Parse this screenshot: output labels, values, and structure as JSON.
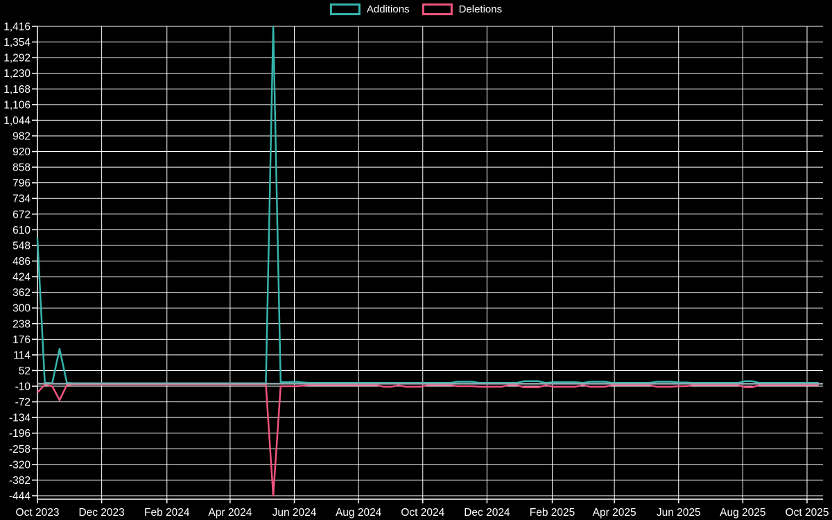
{
  "chart_data": {
    "type": "line",
    "title": "",
    "legend": [
      {
        "label": "Additions",
        "color": "#36b5ad"
      },
      {
        "label": "Deletions",
        "color": "#f0557e"
      }
    ],
    "background": "#000000",
    "grid": true,
    "grid_color": "#ffffff",
    "text_color": "#ffffff",
    "baseline_color": "#95a5ae",
    "x_axis": {
      "tick_labels": [
        "Oct 2023",
        "Dec 2023",
        "Feb 2024",
        "Apr 2024",
        "Jun 2024",
        "Aug 2024",
        "Oct 2024",
        "Dec 2024",
        "Feb 2025",
        "Apr 2025",
        "Jun 2025",
        "Aug 2025",
        "Oct 2025"
      ],
      "point_interval": "week"
    },
    "y_axis": {
      "min": -444,
      "max": 1416,
      "step": 62,
      "tick_labels": [
        "1,416",
        "1,354",
        "1,292",
        "1,230",
        "1,168",
        "1,106",
        "1,044",
        "982",
        "920",
        "858",
        "796",
        "734",
        "672",
        "610",
        "548",
        "486",
        "424",
        "362",
        "300",
        "238",
        "176",
        "114",
        "52",
        "-10",
        "-72",
        "-134",
        "-196",
        "-258",
        "-320",
        "-382",
        "-444"
      ]
    },
    "series": [
      {
        "name": "Additions",
        "color": "#36b5ad",
        "values": [
          576,
          4,
          2,
          138,
          3,
          2,
          2,
          2,
          2,
          2,
          2,
          2,
          2,
          2,
          2,
          2,
          2,
          2,
          2,
          2,
          2,
          2,
          2,
          2,
          2,
          2,
          2,
          2,
          2,
          2,
          2,
          2,
          1416,
          6,
          6,
          8,
          5,
          3,
          3,
          3,
          3,
          3,
          3,
          3,
          3,
          3,
          3,
          3,
          3,
          3,
          3,
          3,
          3,
          3,
          3,
          3,
          3,
          8,
          8,
          8,
          3,
          3,
          3,
          3,
          3,
          3,
          10,
          10,
          10,
          3,
          6,
          6,
          6,
          6,
          3,
          8,
          8,
          8,
          3,
          3,
          3,
          3,
          3,
          3,
          8,
          8,
          8,
          5,
          5,
          3,
          3,
          3,
          3,
          3,
          3,
          3,
          10,
          10,
          3,
          3,
          3,
          3,
          3,
          3,
          3,
          3,
          3
        ]
      },
      {
        "name": "Deletions",
        "color": "#f0557e",
        "values": [
          -35,
          -4,
          -10,
          -65,
          -5,
          -3,
          -3,
          -3,
          -3,
          -3,
          -3,
          -3,
          -3,
          -3,
          -3,
          -3,
          -3,
          -3,
          -3,
          -3,
          -3,
          -3,
          -3,
          -3,
          -3,
          -3,
          -3,
          -3,
          -3,
          -3,
          -3,
          -3,
          -444,
          -10,
          -10,
          -10,
          -8,
          -5,
          -5,
          -5,
          -5,
          -5,
          -5,
          -5,
          -5,
          -5,
          -5,
          -12,
          -12,
          -6,
          -12,
          -12,
          -12,
          -5,
          -5,
          -5,
          -5,
          -10,
          -10,
          -10,
          -12,
          -12,
          -12,
          -12,
          -5,
          -5,
          -14,
          -14,
          -14,
          -6,
          -12,
          -12,
          -12,
          -12,
          -5,
          -12,
          -12,
          -12,
          -5,
          -5,
          -5,
          -5,
          -5,
          -5,
          -12,
          -12,
          -12,
          -10,
          -10,
          -5,
          -5,
          -5,
          -5,
          -5,
          -5,
          -5,
          -14,
          -14,
          -5,
          -5,
          -5,
          -5,
          -5,
          -5,
          -5,
          -5,
          -5
        ]
      }
    ]
  }
}
